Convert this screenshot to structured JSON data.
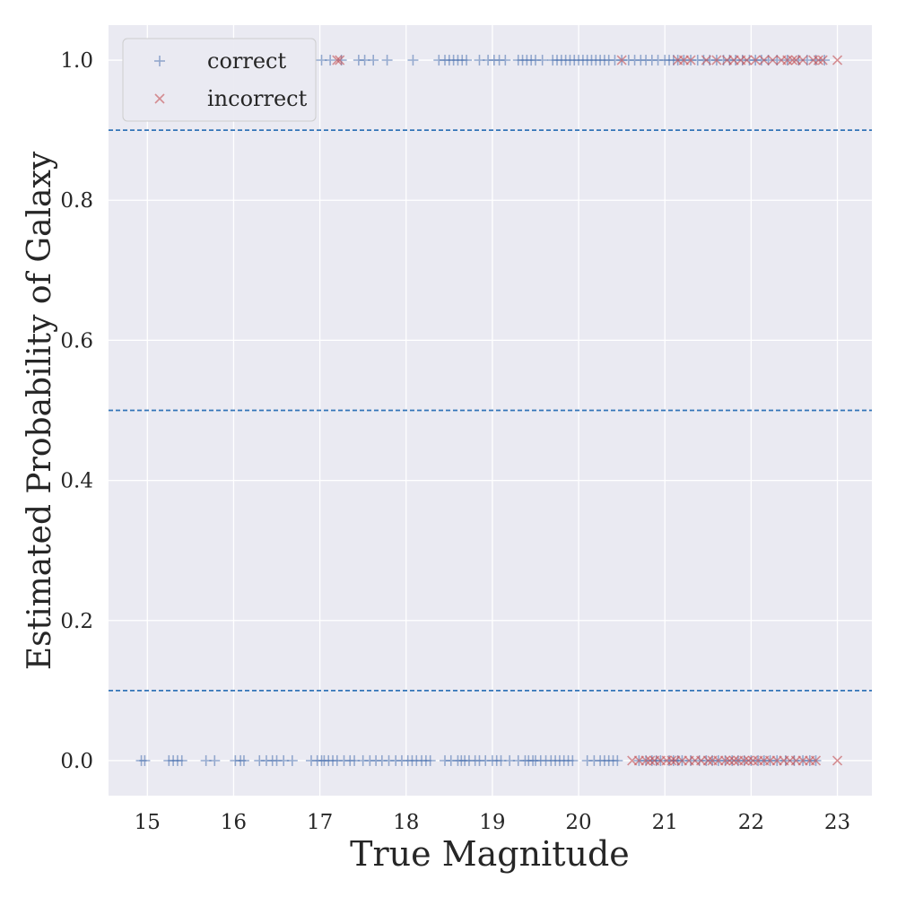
{
  "chart_data": {
    "type": "scatter",
    "title": "",
    "xlabel": "True Magnitude",
    "ylabel": "Estimated Probability of Galaxy",
    "xlim": [
      14.55,
      23.4
    ],
    "ylim": [
      -0.05,
      1.05
    ],
    "xticks": [
      15,
      16,
      17,
      18,
      19,
      20,
      21,
      22,
      23
    ],
    "xtick_labels": [
      "15",
      "16",
      "17",
      "18",
      "19",
      "20",
      "21",
      "22",
      "23"
    ],
    "yticks": [
      0.0,
      0.2,
      0.4,
      0.6,
      0.8,
      1.0
    ],
    "ytick_labels": [
      "0.0",
      "0.2",
      "0.4",
      "0.6",
      "0.8",
      "1.0"
    ],
    "grid": true,
    "legend": "top-left",
    "background": "#eaeaf2",
    "threshold_lines": [
      0.1,
      0.5,
      0.9
    ],
    "threshold_color": "#3274b8",
    "series": [
      {
        "name": "correct",
        "marker": "plus",
        "color": "#4c72b0",
        "points_y0": [
          14.93,
          14.97,
          15.25,
          15.3,
          15.35,
          15.4,
          15.68,
          15.78,
          16.02,
          16.08,
          16.12,
          16.3,
          16.38,
          16.45,
          16.5,
          16.58,
          16.68,
          16.9,
          16.97,
          17.02,
          17.05,
          17.1,
          17.15,
          17.2,
          17.28,
          17.35,
          17.4,
          17.5,
          17.58,
          17.65,
          17.72,
          17.8,
          17.88,
          17.95,
          18.02,
          18.07,
          18.12,
          18.18,
          18.23,
          18.28,
          18.45,
          18.52,
          18.6,
          18.64,
          18.68,
          18.73,
          18.8,
          18.85,
          18.92,
          19.0,
          19.05,
          19.1,
          19.2,
          19.3,
          19.38,
          19.42,
          19.47,
          19.5,
          19.56,
          19.62,
          19.68,
          19.73,
          19.78,
          19.83,
          19.88,
          19.93,
          20.1,
          20.18,
          20.25,
          20.3,
          20.35,
          20.4,
          20.45,
          20.7,
          20.78,
          20.85,
          20.9,
          20.95,
          21.05,
          21.1,
          21.15,
          21.2,
          21.3,
          21.4,
          21.48,
          21.55,
          21.62,
          21.7,
          21.78,
          21.85,
          21.92,
          22.0,
          22.08,
          22.15,
          22.22,
          22.3,
          22.4,
          22.5,
          22.6,
          22.68,
          22.75
        ],
        "points_y1": [
          17.02,
          17.12,
          17.25,
          17.45,
          17.52,
          17.62,
          17.78,
          18.08,
          18.38,
          18.45,
          18.5,
          18.55,
          18.6,
          18.65,
          18.7,
          18.85,
          18.95,
          19.02,
          19.08,
          19.15,
          19.3,
          19.35,
          19.4,
          19.45,
          19.5,
          19.58,
          19.7,
          19.75,
          19.8,
          19.85,
          19.9,
          19.95,
          20.0,
          20.05,
          20.1,
          20.15,
          20.2,
          20.25,
          20.3,
          20.35,
          20.42,
          20.5,
          20.58,
          20.65,
          20.72,
          20.78,
          20.85,
          20.92,
          21.0,
          21.05,
          21.1,
          21.15,
          21.22,
          21.3,
          21.38,
          21.45,
          21.52,
          21.6,
          21.68,
          21.75,
          21.82,
          21.9,
          21.98,
          22.05,
          22.12,
          22.2,
          22.3,
          22.42,
          22.55,
          22.65,
          22.75,
          22.85
        ]
      },
      {
        "name": "incorrect",
        "marker": "x",
        "color": "#c44e52",
        "points_y0": [
          20.62,
          20.7,
          20.78,
          20.83,
          20.88,
          20.95,
          21.02,
          21.08,
          21.12,
          21.2,
          21.28,
          21.35,
          21.42,
          21.5,
          21.55,
          21.62,
          21.7,
          21.75,
          21.8,
          21.85,
          21.92,
          21.97,
          22.02,
          22.08,
          22.15,
          22.22,
          22.3,
          22.38,
          22.45,
          22.52,
          22.6,
          22.68,
          22.75,
          23.0
        ],
        "points_y1": [
          17.2,
          17.23,
          20.5,
          21.15,
          21.22,
          21.3,
          21.48,
          21.6,
          21.72,
          21.8,
          21.88,
          21.95,
          22.05,
          22.15,
          22.25,
          22.35,
          22.42,
          22.48,
          22.52,
          22.6,
          22.72,
          22.78,
          22.83,
          23.0
        ]
      }
    ]
  }
}
